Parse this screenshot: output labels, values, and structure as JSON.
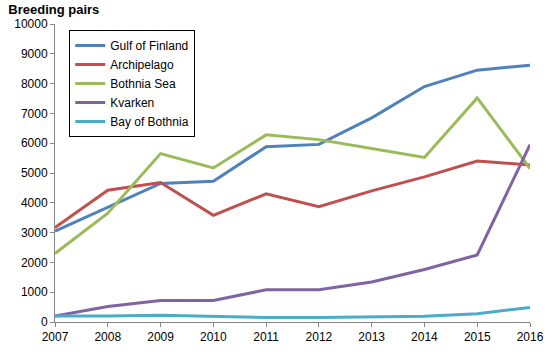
{
  "chart_data": {
    "type": "line",
    "title": "Breeding pairs",
    "categories": [
      "2007",
      "2008",
      "2009",
      "2010",
      "2011",
      "2012",
      "2013",
      "2014",
      "2015",
      "2016"
    ],
    "series": [
      {
        "name": "Gulf of Finland",
        "color": "#4f81bd",
        "values": [
          3050,
          3850,
          4650,
          4720,
          5880,
          5960,
          6850,
          7900,
          8450,
          8620
        ]
      },
      {
        "name": "Archipelago",
        "color": "#c0504d",
        "values": [
          3170,
          4420,
          4680,
          3580,
          4300,
          3870,
          4400,
          4870,
          5400,
          5270
        ]
      },
      {
        "name": "Bothnia Sea",
        "color": "#9bbb59",
        "values": [
          2300,
          3650,
          5650,
          5170,
          6280,
          6120,
          5820,
          5520,
          7520,
          5150
        ]
      },
      {
        "name": "Kvarken",
        "color": "#8064a2",
        "values": [
          200,
          520,
          720,
          720,
          1080,
          1080,
          1340,
          1760,
          2250,
          5950
        ]
      },
      {
        "name": "Bay of Bothnia",
        "color": "#4bacc6",
        "values": [
          200,
          200,
          230,
          190,
          150,
          150,
          180,
          190,
          280,
          490
        ]
      }
    ],
    "ylim": [
      0,
      10000
    ],
    "yticks": [
      0,
      1000,
      2000,
      3000,
      4000,
      5000,
      6000,
      7000,
      8000,
      9000,
      10000
    ],
    "grid": false,
    "legend": "upper left"
  }
}
